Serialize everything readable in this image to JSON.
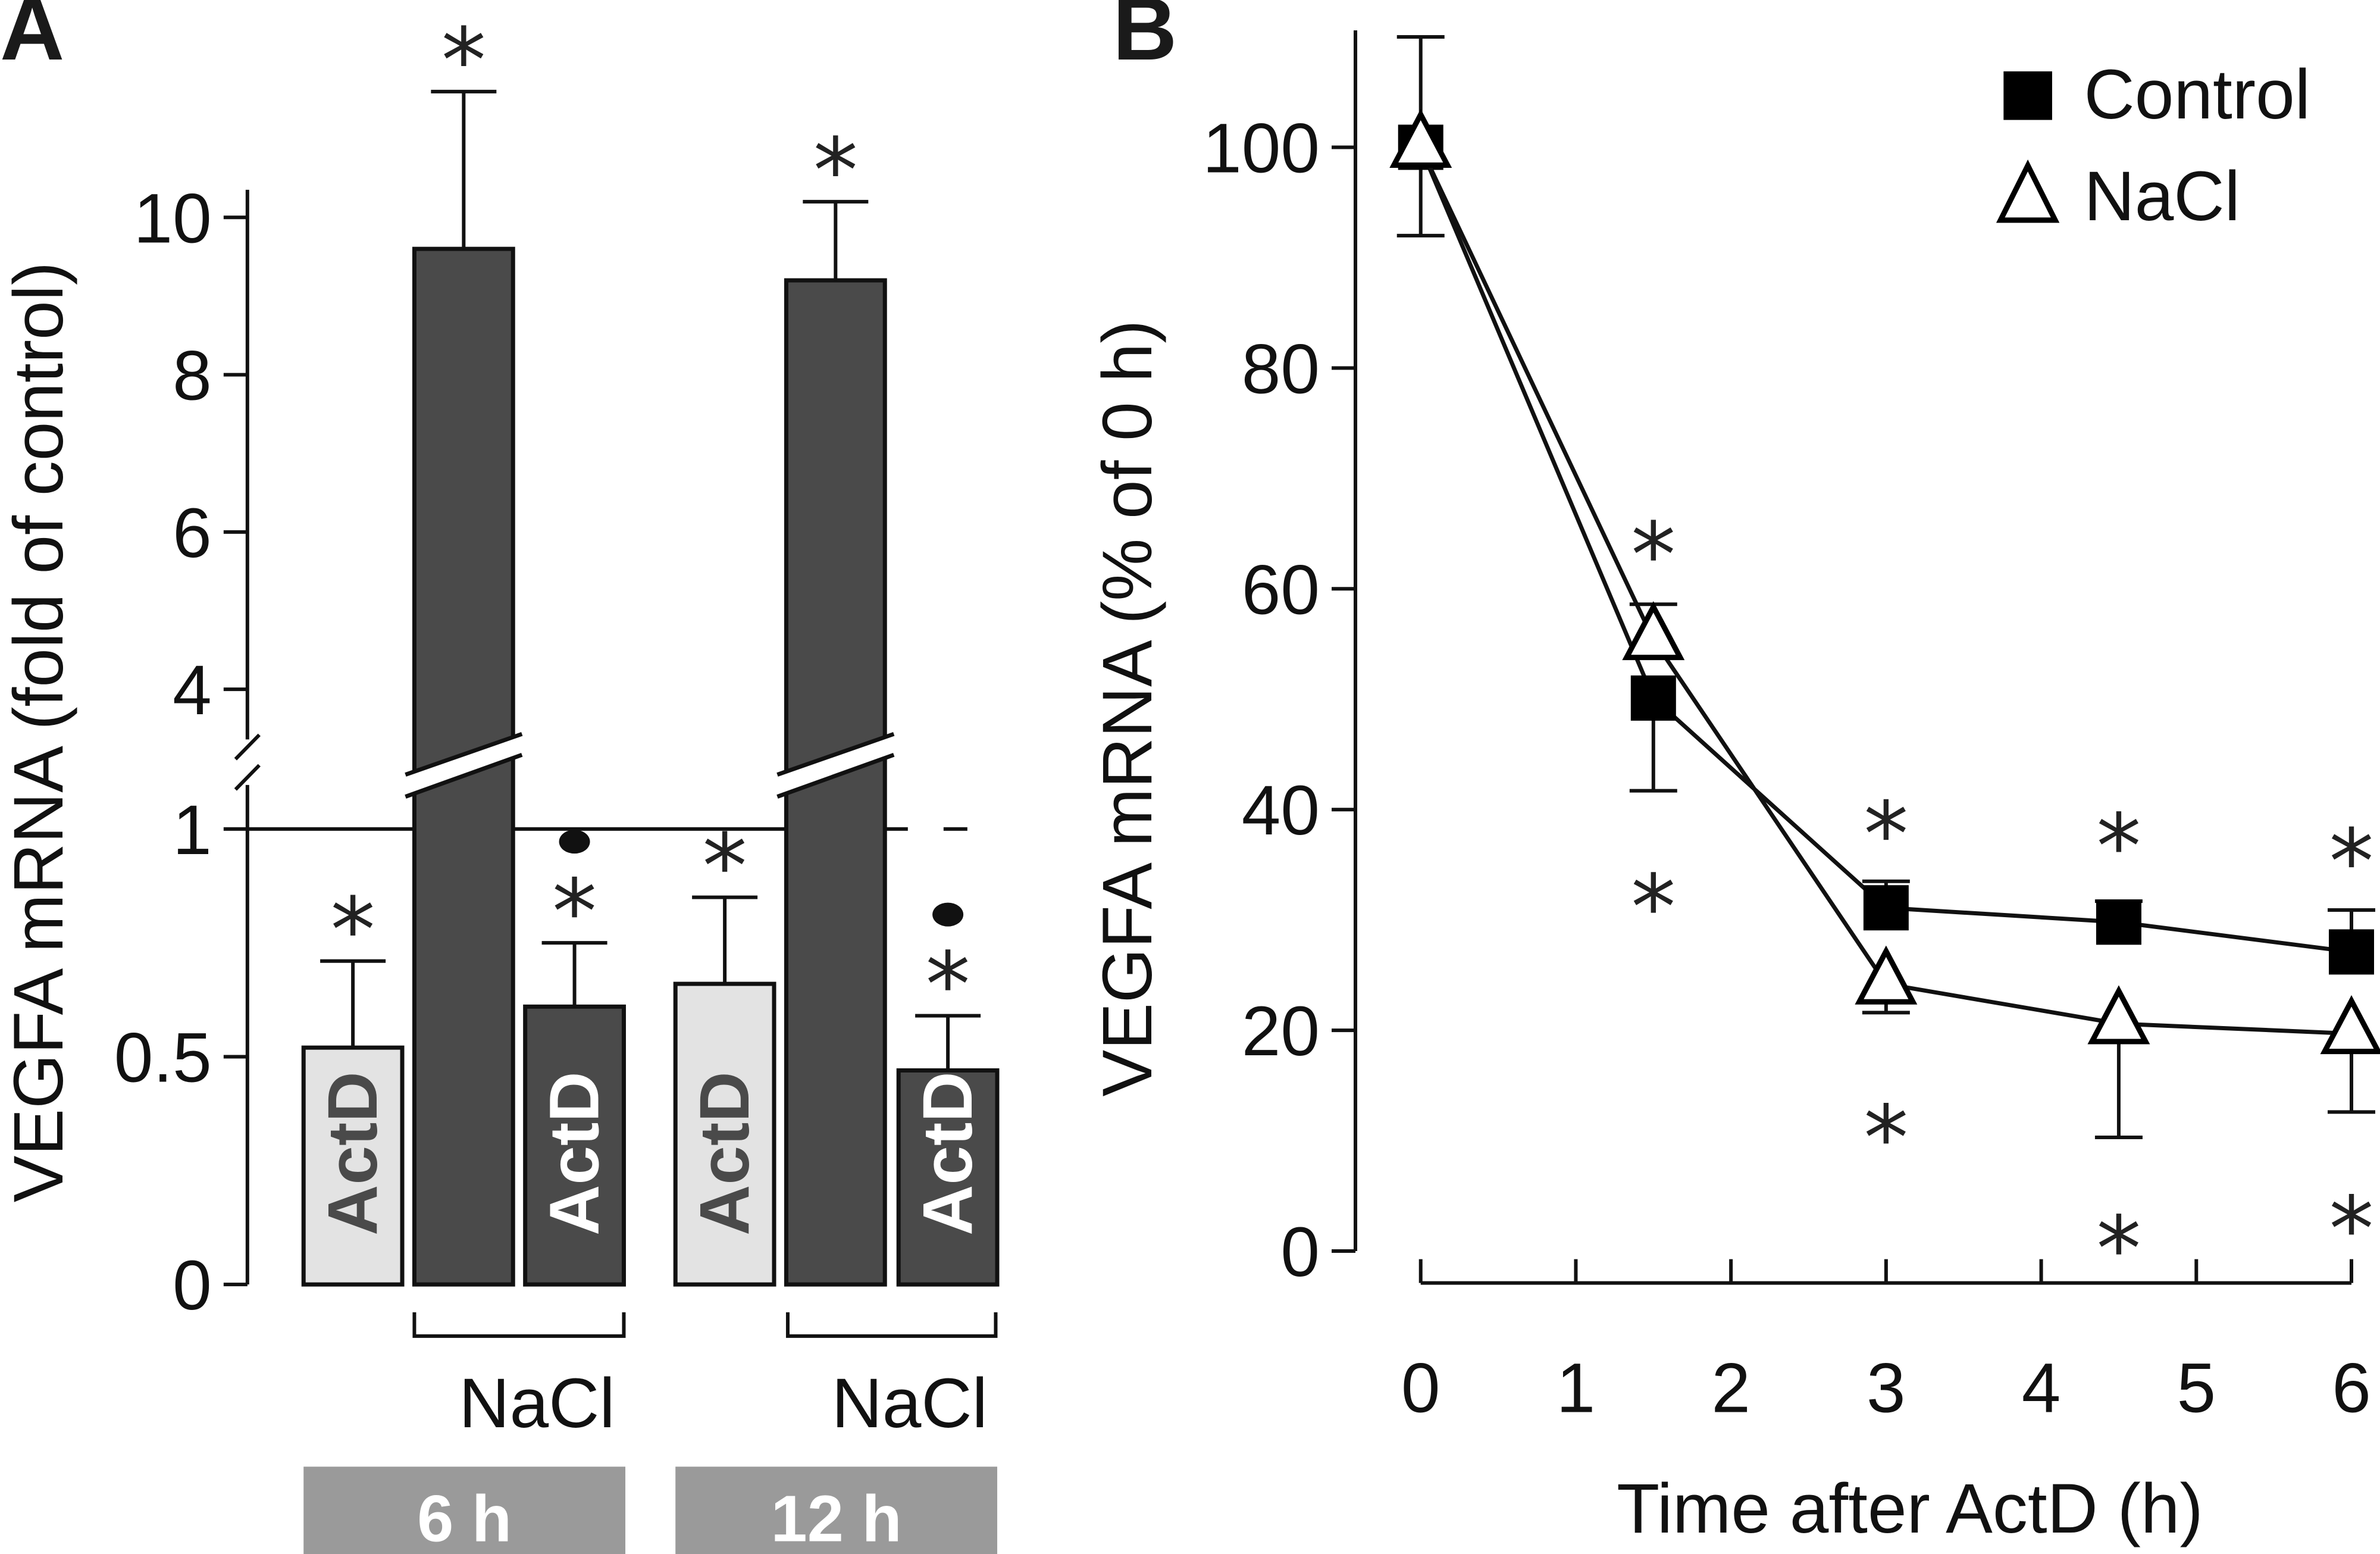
{
  "figure": {
    "panel_a_label": "A",
    "panel_b_label": "B"
  },
  "chart_data": [
    {
      "type": "bar",
      "panel": "A",
      "title": "",
      "ylabel": "VEGFA mRNA (fold of control)",
      "xlabel": "",
      "axis_break": true,
      "ylim_lower": [
        0,
        1
      ],
      "ylim_upper": [
        4,
        11
      ],
      "yticks_lower": [
        "0",
        "0.5",
        "1"
      ],
      "yticks_upper": [
        "4",
        "6",
        "8",
        "10"
      ],
      "reference_line": 1,
      "groups": [
        {
          "label": "6 h",
          "nacl_bracket_label": "NaCl"
        },
        {
          "label": "12 h",
          "nacl_bracket_label": "NaCl"
        }
      ],
      "bars": [
        {
          "group": "6 h",
          "treatment": "ActD",
          "inner_label": "ActD",
          "value": 0.52,
          "error": 0.19,
          "color": "#e3e3e3",
          "text_color": "#4a4a4a",
          "marks": [
            "*"
          ]
        },
        {
          "group": "6 h",
          "treatment": "NaCl",
          "inner_label": "",
          "value": 9.6,
          "error": 2.0,
          "color": "#4a4a4a",
          "text_color": "#ffffff",
          "marks": [
            "*"
          ],
          "broken": true
        },
        {
          "group": "6 h",
          "treatment": "NaCl + ActD",
          "inner_label": "ActD",
          "value": 0.61,
          "error": 0.14,
          "color": "#4a4a4a",
          "text_color": "#ffffff",
          "marks": [
            "*",
            "•"
          ]
        },
        {
          "group": "12 h",
          "treatment": "ActD",
          "inner_label": "ActD",
          "value": 0.66,
          "error": 0.19,
          "color": "#e3e3e3",
          "text_color": "#4a4a4a",
          "marks": [
            "*"
          ]
        },
        {
          "group": "12 h",
          "treatment": "NaCl",
          "inner_label": "",
          "value": 9.2,
          "error": 1.0,
          "color": "#4a4a4a",
          "text_color": "#ffffff",
          "marks": [
            "*"
          ],
          "broken": true
        },
        {
          "group": "12 h",
          "treatment": "NaCl + ActD",
          "inner_label": "ActD",
          "value": 0.47,
          "error": 0.12,
          "color": "#4a4a4a",
          "text_color": "#ffffff",
          "marks": [
            "*",
            "•"
          ]
        }
      ],
      "group_box_color": "#9a9a9a"
    },
    {
      "type": "line",
      "panel": "B",
      "title": "",
      "xlabel": "Time after ActD (h)",
      "ylabel": "VEGFA mRNA (% of 0 h)",
      "xlim": [
        0,
        6
      ],
      "ylim": [
        0,
        110
      ],
      "xticks": [
        "0",
        "1",
        "2",
        "3",
        "4",
        "5",
        "6"
      ],
      "yticks": [
        "0",
        "20",
        "40",
        "60",
        "80",
        "100"
      ],
      "legend_position": "top-right",
      "x": [
        0,
        1.5,
        3,
        4.5,
        6
      ],
      "series": [
        {
          "name": "Control",
          "marker": "filled-square",
          "values": [
            100,
            50.1,
            31.1,
            29.8,
            27.1
          ],
          "error_up": [
            10.0,
            0,
            2.4,
            1.9,
            3.8
          ],
          "error_down": [
            8.0,
            8.4,
            0,
            0,
            0
          ],
          "significance_above": [
            false,
            true,
            true,
            true,
            true
          ]
        },
        {
          "name": "NaCl",
          "marker": "open-triangle",
          "values": [
            100,
            55.4,
            24.2,
            20.6,
            19.7
          ],
          "error_up": [
            0,
            3.2,
            0,
            0,
            0
          ],
          "error_down": [
            0,
            0,
            2.6,
            10.3,
            7.1
          ],
          "significance_below": [
            false,
            true,
            true,
            true,
            true
          ]
        }
      ]
    }
  ]
}
